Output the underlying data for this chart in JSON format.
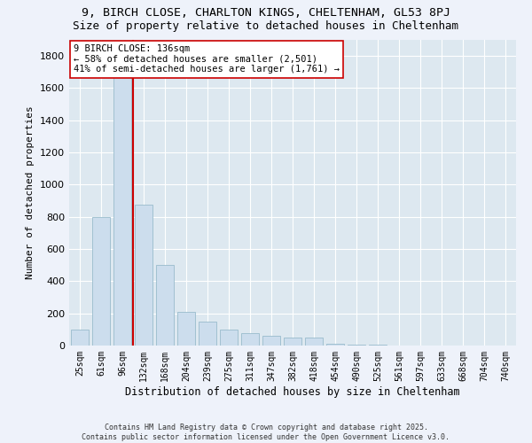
{
  "title1": "9, BIRCH CLOSE, CHARLTON KINGS, CHELTENHAM, GL53 8PJ",
  "title2": "Size of property relative to detached houses in Cheltenham",
  "xlabel": "Distribution of detached houses by size in Cheltenham",
  "ylabel": "Number of detached properties",
  "categories": [
    "25sqm",
    "61sqm",
    "96sqm",
    "132sqm",
    "168sqm",
    "204sqm",
    "239sqm",
    "275sqm",
    "311sqm",
    "347sqm",
    "382sqm",
    "418sqm",
    "454sqm",
    "490sqm",
    "525sqm",
    "561sqm",
    "597sqm",
    "633sqm",
    "668sqm",
    "704sqm",
    "740sqm"
  ],
  "values": [
    100,
    800,
    1700,
    875,
    500,
    210,
    150,
    100,
    75,
    60,
    50,
    50,
    10,
    5,
    3,
    2,
    1,
    1,
    1,
    1,
    1
  ],
  "bar_color": "#ccdded",
  "bar_edge_color": "#99bbcc",
  "vline_color": "#cc0000",
  "vline_x": 2.5,
  "annotation_text": "9 BIRCH CLOSE: 136sqm\n← 58% of detached houses are smaller (2,501)\n41% of semi-detached houses are larger (1,761) →",
  "annotation_box_color": "#ffffff",
  "annotation_box_edge": "#cc0000",
  "ylim": [
    0,
    1900
  ],
  "yticks": [
    0,
    200,
    400,
    600,
    800,
    1000,
    1200,
    1400,
    1600,
    1800
  ],
  "footer": "Contains HM Land Registry data © Crown copyright and database right 2025.\nContains public sector information licensed under the Open Government Licence v3.0.",
  "bg_color": "#eef2fa",
  "plot_bg_color": "#dde8f0",
  "grid_color": "#ffffff",
  "title1_fontsize": 9.5,
  "title2_fontsize": 9,
  "ylabel_fontsize": 8,
  "xlabel_fontsize": 8.5,
  "tick_fontsize": 7,
  "annot_fontsize": 7.5,
  "footer_fontsize": 6
}
